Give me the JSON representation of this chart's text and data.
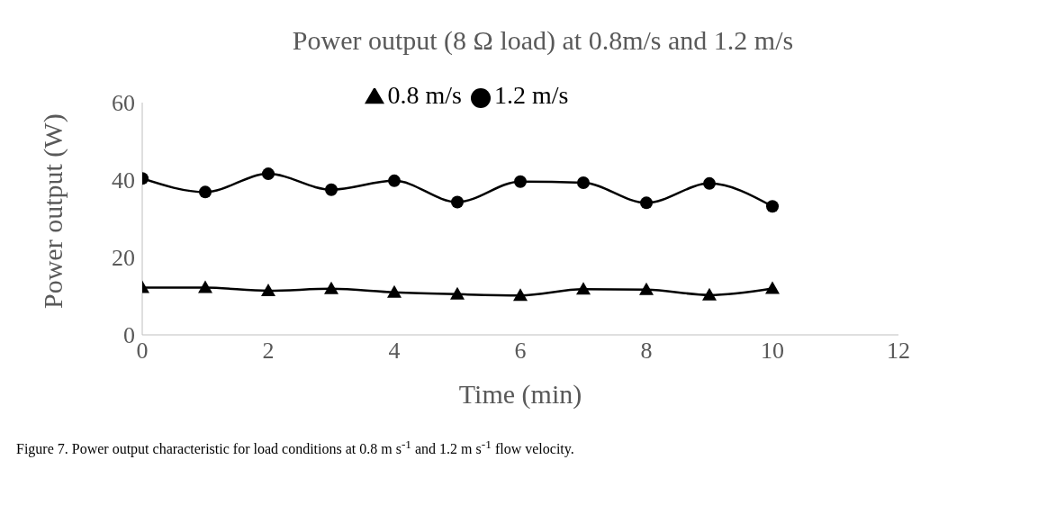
{
  "chart_data": {
    "type": "line",
    "title": "Power output (8 Ω load) at 0.8m/s and 1.2 m/s",
    "xlabel": "Time (min)",
    "ylabel": "Power output (W)",
    "x": [
      0,
      1,
      2,
      3,
      4,
      5,
      6,
      7,
      8,
      9,
      10
    ],
    "series": [
      {
        "name": "0.8 m/s",
        "color": "#000000",
        "marker": "triangle",
        "values": [
          12.2,
          12.2,
          11.4,
          11.9,
          11.0,
          10.5,
          10.2,
          11.8,
          11.7,
          10.3,
          12.0
        ]
      },
      {
        "name": "1.2 m/s",
        "color": "#000000",
        "marker": "circle",
        "values": [
          40.4,
          36.9,
          41.6,
          37.5,
          39.8,
          34.3,
          39.6,
          39.3,
          34.1,
          39.1,
          33.2
        ]
      }
    ],
    "xlim": [
      0,
      12
    ],
    "xticks": [
      0,
      2,
      4,
      6,
      8,
      10,
      12
    ],
    "ylim": [
      0,
      60
    ],
    "yticks": [
      0,
      20,
      40,
      60
    ],
    "grid": false,
    "legend": "top",
    "annotations": [
      "Figure 7. Power output characteristic for load conditions at 0.8 m s$^{-1}$ and 1.2 m s$^{-1}$ flow velocity."
    ]
  }
}
